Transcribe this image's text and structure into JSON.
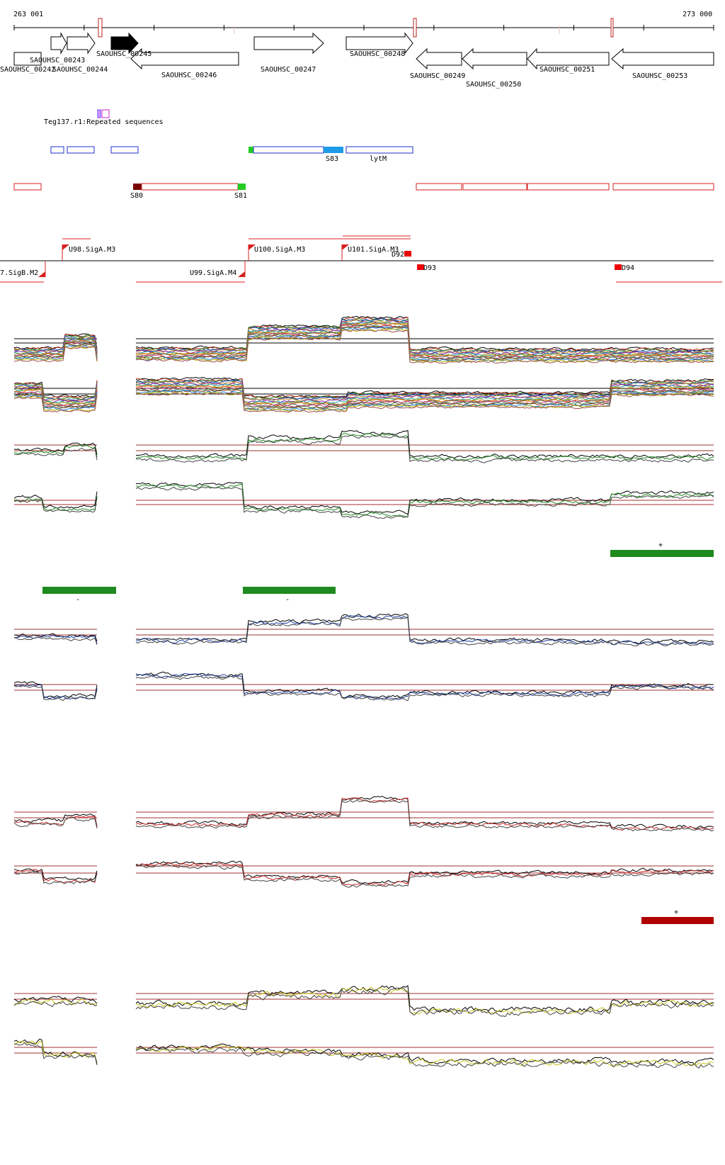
{
  "coords": {
    "start": "263 001",
    "end": "273 000"
  },
  "genes": [
    {
      "label": "SAOUHSC_00242"
    },
    {
      "label": "SAOUHSC_00243"
    },
    {
      "label": "SAOUHSC_00244"
    },
    {
      "label": "SAOUHSC_00245"
    },
    {
      "label": "SAOUHSC_00246"
    },
    {
      "label": "SAOUHSC_00247"
    },
    {
      "label": "SAOUHSC_00248"
    },
    {
      "label": "SAOUHSC_00249"
    },
    {
      "label": "SAOUHSC_00250"
    },
    {
      "label": "SAOUHSC_00251"
    },
    {
      "label": "SAOUHSC_00253"
    }
  ],
  "repeat_label": "Teg137.r1:Repeated sequences",
  "segments": [
    {
      "label": "S83"
    },
    {
      "label": "lytM"
    },
    {
      "label": "S80"
    },
    {
      "label": "S81"
    }
  ],
  "promoters": [
    {
      "label": "U98.SigA.M3"
    },
    {
      "label": "U100.SigA.M3"
    },
    {
      "label": "U101.SigA.M3"
    },
    {
      "label": "7.SigB.M2"
    },
    {
      "label": "U99.SigA.M4"
    }
  ],
  "terminators": [
    {
      "label": "D92"
    },
    {
      "label": "D93"
    },
    {
      "label": "D94"
    }
  ],
  "strand_labels": {
    "plus": "+",
    "minus": "-"
  },
  "colors": {
    "gene_outline": "#000000",
    "gene_highlight": "#000000",
    "feature_blue": "#1f2fcc",
    "feature_red": "#d82020",
    "segment_start": "#22cc22",
    "segment_end_dark": "#7a0000",
    "segment_fill_blue": "#1e9be8",
    "green_track": "#1f8a1f",
    "blue_track": "#1f3fa0",
    "red_track": "#c82828",
    "yellow_track": "#c8c820",
    "dark_red_bar": "#b00000",
    "threshold_line": "#a03030"
  }
}
